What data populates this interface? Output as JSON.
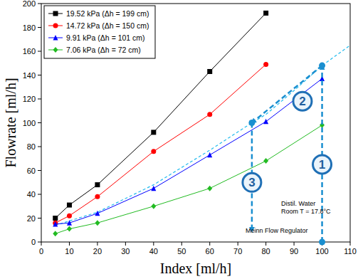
{
  "chart_data": {
    "type": "line",
    "x_label": "Index  [ml/h]",
    "y_label": "Flowrate  [ml/h]",
    "xlim": [
      0,
      110
    ],
    "xticks": [
      0,
      10,
      20,
      30,
      40,
      50,
      60,
      70,
      80,
      90,
      100,
      110
    ],
    "ylim": [
      0,
      200
    ],
    "yticks": [
      0,
      20,
      40,
      60,
      80,
      100,
      120,
      140,
      160,
      180,
      200
    ],
    "grid": false,
    "legend": "top-left",
    "series": [
      {
        "name": "19.52 kPa (Δh = 199 cm)",
        "color": "#000000",
        "marker": "square",
        "x": [
          5,
          10,
          20,
          40,
          60,
          80
        ],
        "values": [
          20,
          31,
          48,
          92,
          143,
          192
        ]
      },
      {
        "name": "14.72 kPa (Δh = 150 cm)",
        "color": "#ff0000",
        "marker": "circle",
        "x": [
          5,
          10,
          20,
          40,
          60,
          80
        ],
        "values": [
          16,
          22,
          38,
          76,
          107,
          149
        ]
      },
      {
        "name": "9.91 kPa (Δh = 101 cm)",
        "color": "#0000ff",
        "marker": "triangle",
        "x": [
          5,
          10,
          20,
          40,
          60,
          80,
          100
        ],
        "values": [
          15,
          16,
          24,
          45,
          73,
          101,
          137
        ]
      },
      {
        "name": "7.06 kPa (Δh = 72 cm)",
        "color": "#22bb22",
        "marker": "diamond",
        "x": [
          5,
          10,
          20,
          40,
          60,
          80,
          100
        ],
        "values": [
          7,
          11,
          16,
          30,
          45,
          68,
          98
        ]
      }
    ],
    "curve": {
      "color": "#22bbee",
      "line_style": "dashed",
      "x": [
        5,
        20,
        40,
        60,
        75,
        80,
        90,
        100,
        110
      ],
      "values": [
        14,
        25,
        48,
        77,
        100,
        107,
        127,
        148,
        165
      ]
    },
    "arrows": [
      {
        "label": "1",
        "from": [
          100,
          0
        ],
        "to": [
          100,
          148
        ]
      },
      {
        "label": "2",
        "from": [
          100,
          148
        ],
        "to": [
          75,
          100
        ]
      },
      {
        "label": "3",
        "from": [
          75,
          100
        ],
        "to": [
          75,
          9
        ]
      }
    ],
    "notes": [
      "Distil. Water",
      "Room T = 17.8°C",
      "Meinn Flow Regulator"
    ]
  }
}
